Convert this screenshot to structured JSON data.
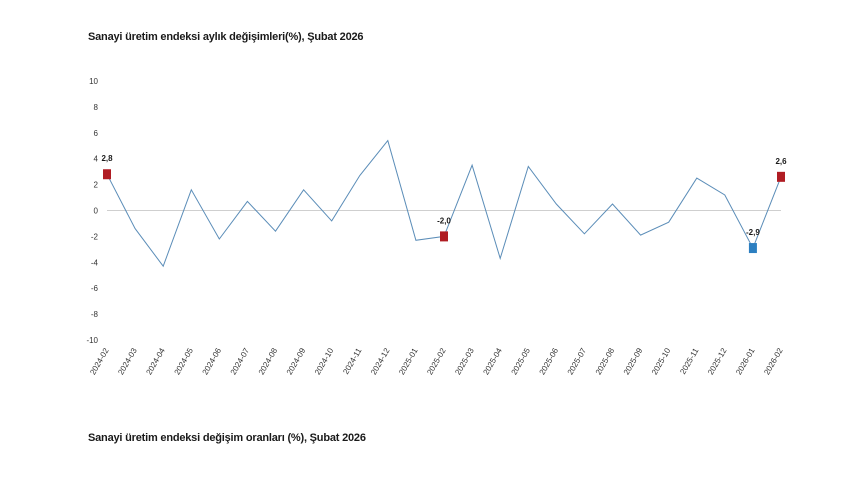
{
  "titles": {
    "main": "Sanayi üretim endeksi aylık değişimleri(%), Şubat 2026",
    "secondary": "Sanayi üretim endeksi değişim oranları (%), Şubat 2026"
  },
  "chart_data": {
    "type": "line",
    "title": "Sanayi üretim endeksi aylık değişimleri(%), Şubat 2026",
    "xlabel": "",
    "ylabel": "",
    "ylim": [
      -10,
      10
    ],
    "yticks": [
      10,
      8,
      6,
      4,
      2,
      0,
      -2,
      -4,
      -6,
      -8,
      -10
    ],
    "grid": false,
    "categories": [
      "2024-02",
      "2024-03",
      "2024-04",
      "2024-05",
      "2024-06",
      "2024-07",
      "2024-08",
      "2024-09",
      "2024-10",
      "2024-11",
      "2024-12",
      "2025-01",
      "2025-02",
      "2025-03",
      "2025-04",
      "2025-05",
      "2025-06",
      "2025-07",
      "2025-08",
      "2025-09",
      "2025-10",
      "2025-11",
      "2025-12",
      "2026-01",
      "2026-02"
    ],
    "series": [
      {
        "values": [
          2.8,
          -1.4,
          -4.3,
          1.6,
          -2.2,
          0.7,
          -1.6,
          1.6,
          -0.8,
          2.7,
          5.4,
          -2.3,
          -2.0,
          3.5,
          -3.7,
          3.4,
          0.5,
          -1.8,
          0.5,
          -1.9,
          -0.9,
          2.5,
          1.2,
          -2.9,
          2.6
        ],
        "color": "#5b8db8"
      }
    ],
    "highlights": [
      {
        "index": 0,
        "value": 2.8,
        "label": "2,8",
        "color": "#b01c23"
      },
      {
        "index": 12,
        "value": -2.0,
        "label": "-2,0",
        "color": "#b01c23"
      },
      {
        "index": 23,
        "value": -2.9,
        "label": "-2,9",
        "color": "#2c7fc1"
      },
      {
        "index": 24,
        "value": 2.6,
        "label": "2,6",
        "color": "#b01c23"
      }
    ],
    "zero_line_color": "#cfcfcf"
  }
}
